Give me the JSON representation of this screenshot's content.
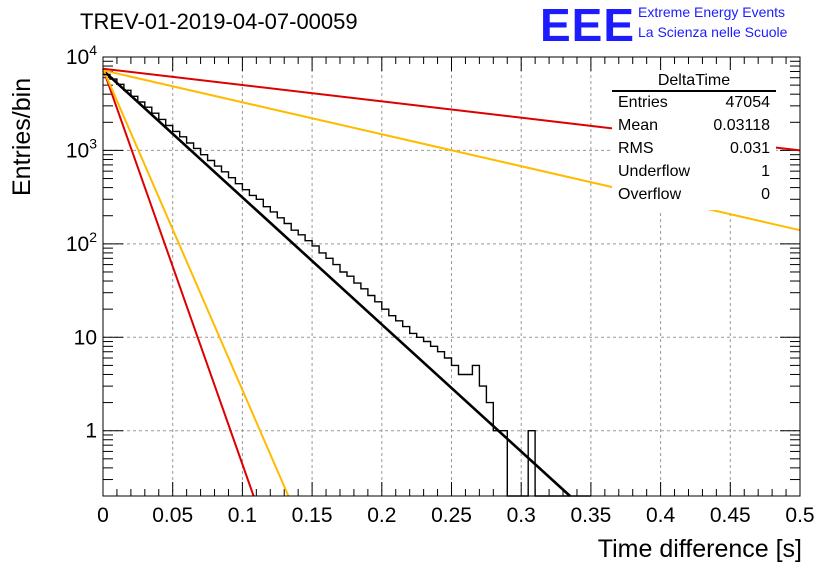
{
  "title": "TREV-01-2019-04-07-00059",
  "logo": {
    "text": "EEE",
    "line1": "Extreme Energy Events",
    "line2": "La Scienza nelle Scuole",
    "color": "#1c1cff"
  },
  "stats": {
    "title": "DeltaTime",
    "rows": [
      {
        "label": "Entries",
        "value": "47054"
      },
      {
        "label": "Mean",
        "value": "0.03118"
      },
      {
        "label": "RMS",
        "value": "0.031"
      },
      {
        "label": "Underflow",
        "value": "1"
      },
      {
        "label": "Overflow",
        "value": "0"
      }
    ]
  },
  "chart_data": {
    "type": "line",
    "xlabel": "Time difference [s]",
    "ylabel": "Entries/bin",
    "xlim": [
      0,
      0.5
    ],
    "ylim": [
      0.2,
      10000
    ],
    "yscale": "log",
    "grid": true,
    "x_ticks": [
      "0",
      "0.05",
      "0.1",
      "0.15",
      "0.2",
      "0.25",
      "0.3",
      "0.35",
      "0.4",
      "0.45",
      "0.5"
    ],
    "y_ticks": [
      {
        "value": 1,
        "label": "1"
      },
      {
        "value": 10,
        "label": "10"
      },
      {
        "value": 100,
        "label": "10^2"
      },
      {
        "value": 1000,
        "label": "10^3"
      },
      {
        "value": 10000,
        "label": "10^4"
      }
    ],
    "histogram": {
      "bin_width": 0.005,
      "color": "#000000",
      "values": [
        6500,
        5800,
        5100,
        4400,
        3800,
        3300,
        2900,
        2500,
        2150,
        1850,
        1600,
        1400,
        1200,
        1050,
        900,
        780,
        680,
        590,
        510,
        440,
        380,
        330,
        300,
        250,
        220,
        190,
        165,
        140,
        125,
        108,
        95,
        80,
        70,
        60,
        50,
        45,
        38,
        33,
        28,
        24,
        20,
        17,
        15,
        13,
        11,
        10,
        9,
        8,
        7,
        6,
        5,
        4,
        4,
        5,
        3,
        2,
        1,
        1,
        0.2,
        0.2,
        0.2,
        1,
        0.2,
        0.2,
        0.2,
        0.2,
        0.2,
        0.2,
        0.2,
        0.2
      ]
    },
    "series": [
      {
        "color": "#000000",
        "x": [
          0,
          0.335
        ],
        "y": [
          7200,
          0.2
        ],
        "width": 2.6
      },
      {
        "color": "#dd0000",
        "x": [
          0,
          0.108
        ],
        "y": [
          7500,
          0.2
        ],
        "width": 2
      },
      {
        "color": "#ffbb00",
        "x": [
          0,
          0.133
        ],
        "y": [
          7500,
          0.2
        ],
        "width": 2
      },
      {
        "color": "#ffbb00",
        "x": [
          0,
          0.5
        ],
        "y": [
          7200,
          140
        ],
        "width": 2
      },
      {
        "color": "#dd0000",
        "x": [
          0,
          0.5
        ],
        "y": [
          7500,
          1000
        ],
        "width": 2
      }
    ]
  }
}
